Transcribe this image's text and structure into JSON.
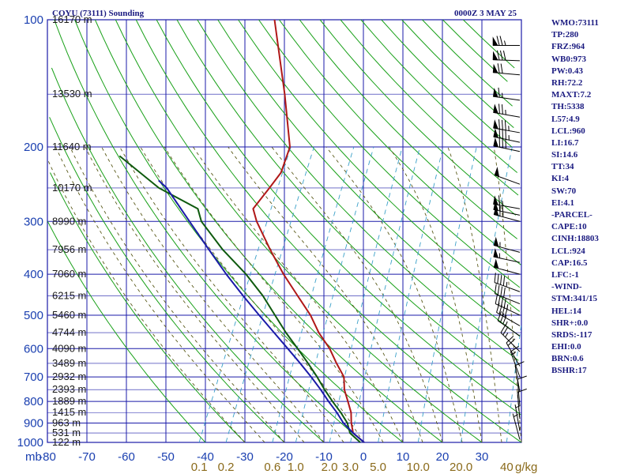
{
  "chart_data": {
    "type": "skew-t log-p sounding",
    "title": "COYU (73111) Sounding",
    "time": "0000Z  3 MAY 25",
    "pressure_axis": {
      "unit_label": "mb",
      "ticks": [
        100,
        200,
        300,
        400,
        500,
        600,
        700,
        800,
        900,
        1000
      ],
      "range": [
        100,
        1000
      ]
    },
    "temperature_axis": {
      "ticks": [
        -80,
        -70,
        -60,
        -50,
        -40,
        -30,
        -20,
        -10,
        0,
        10,
        20,
        30,
        40
      ],
      "labels": [
        "-80",
        "-70",
        "-60",
        "-50",
        "-40",
        "-30",
        "-20",
        "-10",
        "0",
        "10",
        "20",
        "30",
        "40"
      ],
      "range": [
        -80,
        40
      ]
    },
    "mixing_ratio_axis": {
      "unit_label": "g/kg",
      "ticks": [
        0.1,
        0.2,
        0.6,
        1.0,
        2.0,
        3.0,
        5.0,
        10.0,
        20.0,
        40.0
      ],
      "labels": [
        "0.1",
        "0.2",
        "0.6",
        "1.0",
        "2.0",
        "3.0",
        "5.0",
        "10.0",
        "20.0",
        "40"
      ]
    },
    "height_labels": [
      {
        "p": 100,
        "label": "16170 m"
      },
      {
        "p": 150,
        "label": "13530 m"
      },
      {
        "p": 200,
        "label": "11640 m"
      },
      {
        "p": 250,
        "label": "10170 m"
      },
      {
        "p": 300,
        "label": "8990 m"
      },
      {
        "p": 350,
        "label": "7956 m"
      },
      {
        "p": 400,
        "label": "7060 m"
      },
      {
        "p": 450,
        "label": "6215 m"
      },
      {
        "p": 500,
        "label": "5460 m"
      },
      {
        "p": 550,
        "label": "4744 m"
      },
      {
        "p": 600,
        "label": "4090 m"
      },
      {
        "p": 650,
        "label": "3489 m"
      },
      {
        "p": 700,
        "label": "2932 m"
      },
      {
        "p": 750,
        "label": "2393 m"
      },
      {
        "p": 800,
        "label": "1889 m"
      },
      {
        "p": 850,
        "label": "1415 m"
      },
      {
        "p": 900,
        "label": "963 m"
      },
      {
        "p": 950,
        "label": "531 m"
      },
      {
        "p": 1000,
        "label": "122 m"
      }
    ],
    "series": [
      {
        "name": "Temperature",
        "color": "#b01818",
        "points": [
          {
            "p": 1000,
            "t": 0.2
          },
          {
            "p": 950,
            "t": -3.8
          },
          {
            "p": 900,
            "t": -5.5
          },
          {
            "p": 850,
            "t": -6.9
          },
          {
            "p": 800,
            "t": -9.1
          },
          {
            "p": 750,
            "t": -11.5
          },
          {
            "p": 700,
            "t": -13.2
          },
          {
            "p": 650,
            "t": -16.8
          },
          {
            "p": 600,
            "t": -20.4
          },
          {
            "p": 550,
            "t": -25.2
          },
          {
            "p": 500,
            "t": -29.5
          },
          {
            "p": 450,
            "t": -35.2
          },
          {
            "p": 400,
            "t": -41.5
          },
          {
            "p": 350,
            "t": -48.0
          },
          {
            "p": 300,
            "t": -55.0
          },
          {
            "p": 280,
            "t": -57.5
          },
          {
            "p": 250,
            "t": -56.0
          },
          {
            "p": 230,
            "t": -55.0
          },
          {
            "p": 200,
            "t": -56.0
          },
          {
            "p": 150,
            "t": -64.0
          },
          {
            "p": 100,
            "t": -76.0
          }
        ]
      },
      {
        "name": "Dewpoint",
        "color": "#0e5a0e",
        "points": [
          {
            "p": 1000,
            "t": -0.8
          },
          {
            "p": 950,
            "t": -4.6
          },
          {
            "p": 900,
            "t": -6.5
          },
          {
            "p": 850,
            "t": -9.5
          },
          {
            "p": 800,
            "t": -13.0
          },
          {
            "p": 750,
            "t": -16.5
          },
          {
            "p": 700,
            "t": -20.0
          },
          {
            "p": 650,
            "t": -24.0
          },
          {
            "p": 600,
            "t": -28.5
          },
          {
            "p": 550,
            "t": -33.5
          },
          {
            "p": 500,
            "t": -38.5
          },
          {
            "p": 450,
            "t": -44.0
          },
          {
            "p": 400,
            "t": -51.0
          },
          {
            "p": 350,
            "t": -60.0
          },
          {
            "p": 300,
            "t": -69.0
          },
          {
            "p": 280,
            "t": -71.5
          },
          {
            "p": 250,
            "t": -84.0
          },
          {
            "p": 210,
            "t": -98.0
          }
        ]
      },
      {
        "name": "Parcel",
        "color": "#1a1aa8",
        "points": [
          {
            "p": 1000,
            "t": 0.2
          },
          {
            "p": 950,
            "t": -3.8
          },
          {
            "p": 900,
            "t": -7.5
          },
          {
            "p": 850,
            "t": -10.5
          },
          {
            "p": 800,
            "t": -14.0
          },
          {
            "p": 750,
            "t": -17.5
          },
          {
            "p": 700,
            "t": -21.5
          },
          {
            "p": 650,
            "t": -26.0
          },
          {
            "p": 600,
            "t": -31.0
          },
          {
            "p": 550,
            "t": -36.5
          },
          {
            "p": 500,
            "t": -42.5
          },
          {
            "p": 450,
            "t": -49.0
          },
          {
            "p": 400,
            "t": -56.0
          },
          {
            "p": 350,
            "t": -63.5
          },
          {
            "p": 300,
            "t": -72.0
          },
          {
            "p": 250,
            "t": -82.0
          },
          {
            "p": 240,
            "t": -85.0
          }
        ]
      }
    ],
    "winds": [
      {
        "p": 115,
        "dir": 270,
        "spd": 75
      },
      {
        "p": 125,
        "dir": 272,
        "spd": 80
      },
      {
        "p": 135,
        "dir": 275,
        "spd": 70
      },
      {
        "p": 155,
        "dir": 278,
        "spd": 65
      },
      {
        "p": 170,
        "dir": 280,
        "spd": 75
      },
      {
        "p": 185,
        "dir": 280,
        "spd": 85
      },
      {
        "p": 195,
        "dir": 282,
        "spd": 85
      },
      {
        "p": 205,
        "dir": 282,
        "spd": 80
      },
      {
        "p": 245,
        "dir": 290,
        "spd": 50
      },
      {
        "p": 280,
        "dir": 280,
        "spd": 65
      },
      {
        "p": 290,
        "dir": 282,
        "spd": 70
      },
      {
        "p": 300,
        "dir": 285,
        "spd": 65
      },
      {
        "p": 355,
        "dir": 285,
        "spd": 55
      },
      {
        "p": 375,
        "dir": 282,
        "spd": 55
      },
      {
        "p": 400,
        "dir": 285,
        "spd": 50
      },
      {
        "p": 440,
        "dir": 290,
        "spd": 45
      },
      {
        "p": 470,
        "dir": 292,
        "spd": 40
      },
      {
        "p": 500,
        "dir": 295,
        "spd": 45
      },
      {
        "p": 530,
        "dir": 300,
        "spd": 40
      },
      {
        "p": 560,
        "dir": 305,
        "spd": 35
      },
      {
        "p": 610,
        "dir": 315,
        "spd": 25
      },
      {
        "p": 660,
        "dir": 330,
        "spd": 20
      },
      {
        "p": 700,
        "dir": 340,
        "spd": 15
      },
      {
        "p": 760,
        "dir": 350,
        "spd": 10
      },
      {
        "p": 820,
        "dir": 355,
        "spd": 10
      },
      {
        "p": 880,
        "dir": 355,
        "spd": 10
      },
      {
        "p": 940,
        "dir": 350,
        "spd": 5
      },
      {
        "p": 985,
        "dir": 345,
        "spd": 5
      }
    ],
    "indices": [
      "WMO:73111",
      "TP:280",
      "FRZ:964",
      "WB0:973",
      "PW:0.43",
      "RH:72.2",
      "MAXT:7.2",
      "TH:5338",
      "L57:4.9",
      "LCL:960",
      "LI:16.7",
      "SI:14.6",
      "TT:34",
      "KI:4",
      "SW:70",
      "EI:4.1",
      "-PARCEL-",
      "CAPE:10",
      "CINH:18803",
      "LCL:924",
      "CAP:16.5",
      "LFC:-1",
      "-WIND-",
      "STM:341/15",
      "HEL:14",
      "SHR+:0.0",
      "SRDS:-117",
      "EHI:0.0",
      "BRN:0.6",
      "BSHR:17"
    ],
    "colors": {
      "grid": "#1a1aa8",
      "dry_adiabats": "#18a018",
      "moist_adiabats": "#5a5a1a",
      "mixing_ratio": "#3aa0c8",
      "temperature": "#b01818",
      "dewpoint": "#0e5a0e",
      "parcel": "#1a1aa8",
      "text": "#1a1a80"
    }
  }
}
